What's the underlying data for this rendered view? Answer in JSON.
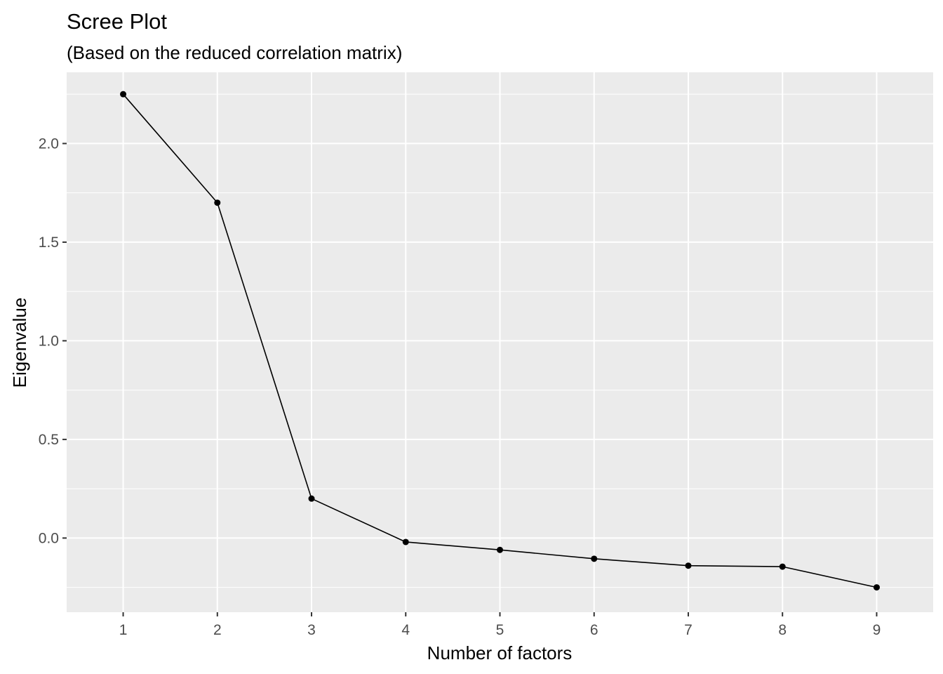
{
  "chart_data": {
    "type": "line",
    "title": "Scree Plot",
    "subtitle": "(Based on the reduced correlation matrix)",
    "xlabel": "Number of factors",
    "ylabel": "Eigenvalue",
    "x": [
      1,
      2,
      3,
      4,
      5,
      6,
      7,
      8,
      9
    ],
    "values": [
      2.25,
      1.7,
      0.2,
      -0.02,
      -0.06,
      -0.105,
      -0.14,
      -0.145,
      -0.25
    ],
    "xlim": [
      0.4,
      9.6
    ],
    "ylim": [
      -0.376,
      2.361
    ],
    "xticks": [
      "1",
      "2",
      "3",
      "4",
      "5",
      "6",
      "7",
      "8",
      "9"
    ],
    "yticks": [
      "0.0",
      "0.5",
      "1.0",
      "1.5",
      "2.0"
    ],
    "ytick_values": [
      0.0,
      0.5,
      1.0,
      1.5,
      2.0
    ],
    "grid": true,
    "legend": "none",
    "colors": {
      "panel_background": "#ebebeb",
      "grid_line": "#ffffff",
      "series": "#000000"
    }
  }
}
